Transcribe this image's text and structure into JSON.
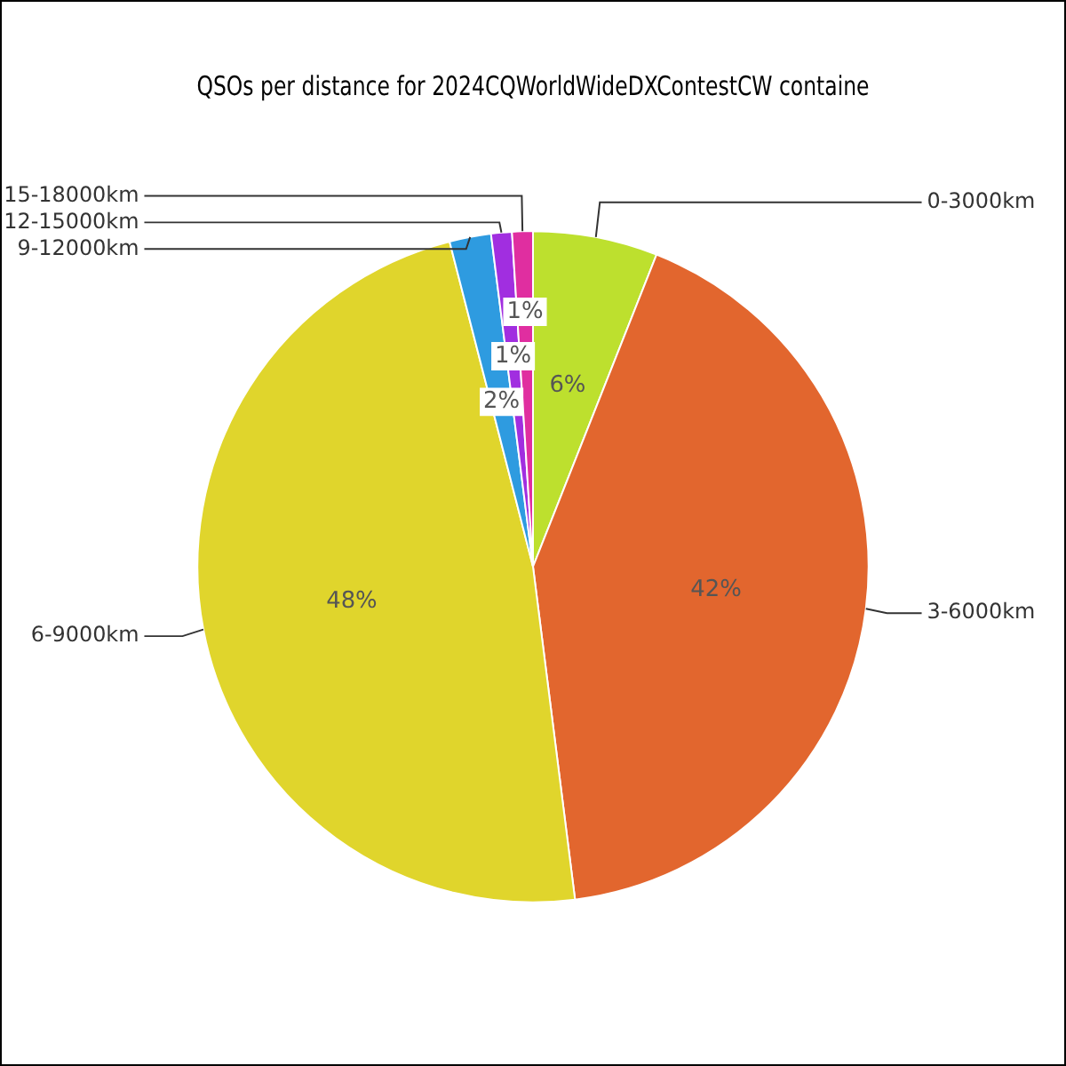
{
  "chart_data": {
    "type": "pie",
    "title": "QSOs per distance for 2024CQWorldWideDXContestCW containe",
    "categories": [
      "0-3000km",
      "3-6000km",
      "6-9000km",
      "9-12000km",
      "12-15000km",
      "15-18000km"
    ],
    "values": [
      6,
      42,
      48,
      2,
      1,
      1
    ],
    "colors": [
      "#bde02e",
      "#e2662e",
      "#e0d52c",
      "#2e9be0",
      "#a12ee0",
      "#e02ea0"
    ],
    "value_labels": [
      "6%",
      "42%",
      "48%",
      "2%",
      "1%",
      "1%"
    ],
    "legend": false
  }
}
